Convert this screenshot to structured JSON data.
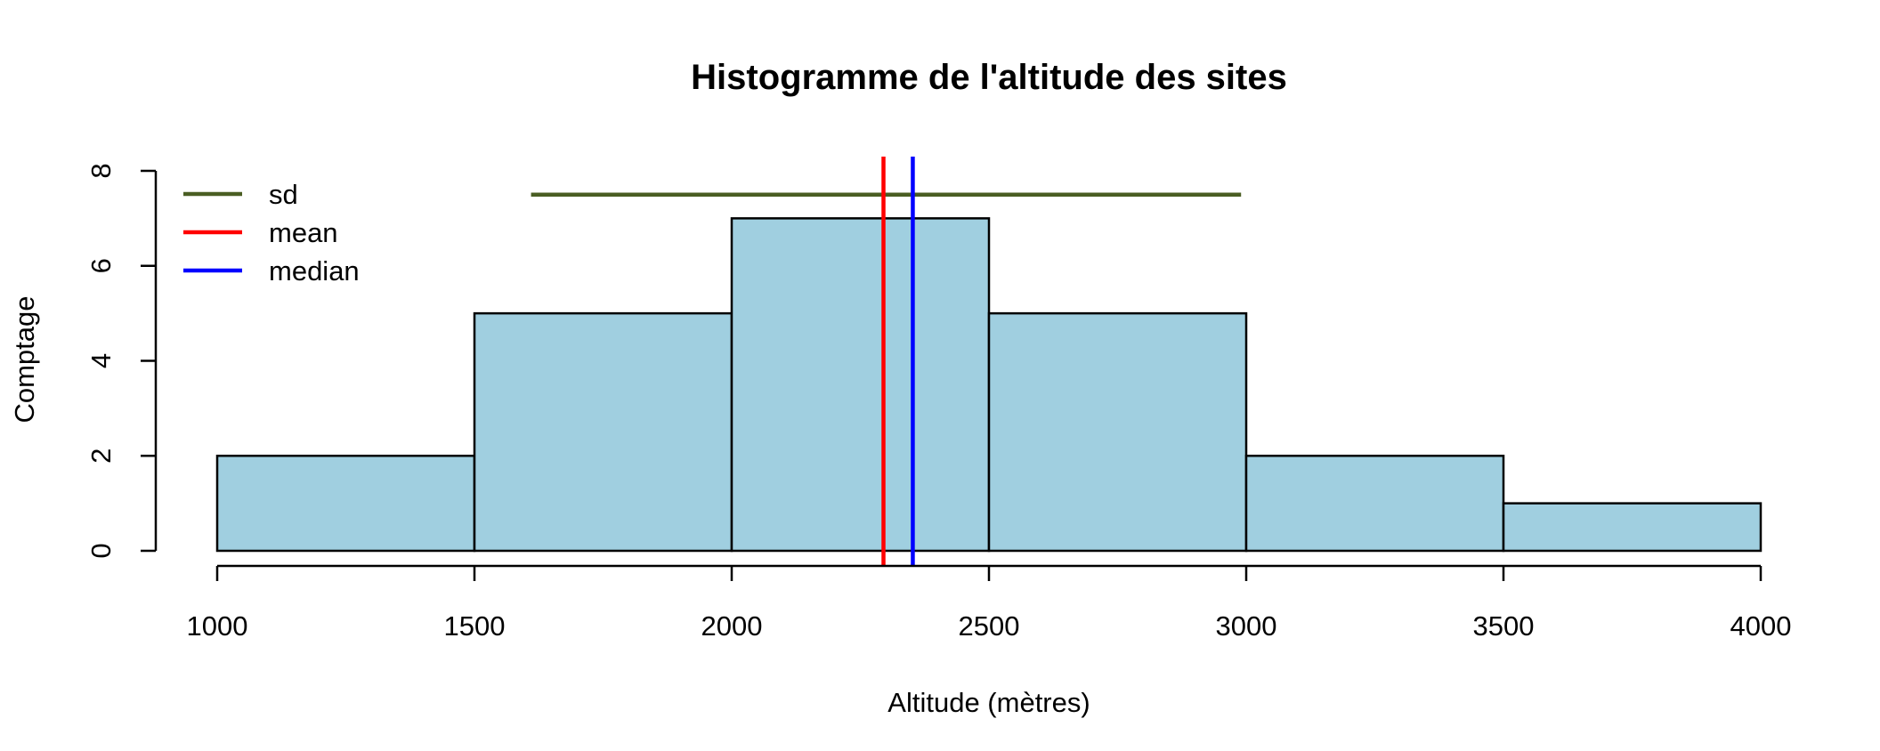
{
  "chart_data": {
    "type": "bar",
    "title": "Histogramme de l'altitude des sites",
    "xlabel": "Altitude (mètres)",
    "ylabel": "Comptage",
    "bins": [
      {
        "x0": 1000,
        "x1": 1500,
        "count": 2
      },
      {
        "x0": 1500,
        "x1": 2000,
        "count": 5
      },
      {
        "x0": 2000,
        "x1": 2500,
        "count": 7
      },
      {
        "x0": 2500,
        "x1": 3000,
        "count": 5
      },
      {
        "x0": 3000,
        "x1": 3500,
        "count": 2
      },
      {
        "x0": 3500,
        "x1": 4000,
        "count": 1
      }
    ],
    "xlim": [
      1000,
      4000
    ],
    "ylim": [
      0,
      8
    ],
    "x_ticks": [
      "1000",
      "1500",
      "2000",
      "2500",
      "3000",
      "3500",
      "4000"
    ],
    "y_ticks": [
      "0",
      "2",
      "4",
      "6",
      "8"
    ],
    "bar_color": "#a0cfe0",
    "lines": {
      "sd": {
        "label": "sd",
        "x_from": 1610,
        "x_to": 2990,
        "y": 7.5,
        "color": "#4a5e23"
      },
      "mean": {
        "label": "mean",
        "x": 2295,
        "color": "#ff0000"
      },
      "median": {
        "label": "median",
        "x": 2352,
        "color": "#0000ff"
      }
    },
    "legend": {
      "position": "top-left",
      "entries": [
        {
          "label": "sd",
          "color": "#4a5e23"
        },
        {
          "label": "mean",
          "color": "#ff0000"
        },
        {
          "label": "median",
          "color": "#0000ff"
        }
      ]
    },
    "grid": false
  }
}
